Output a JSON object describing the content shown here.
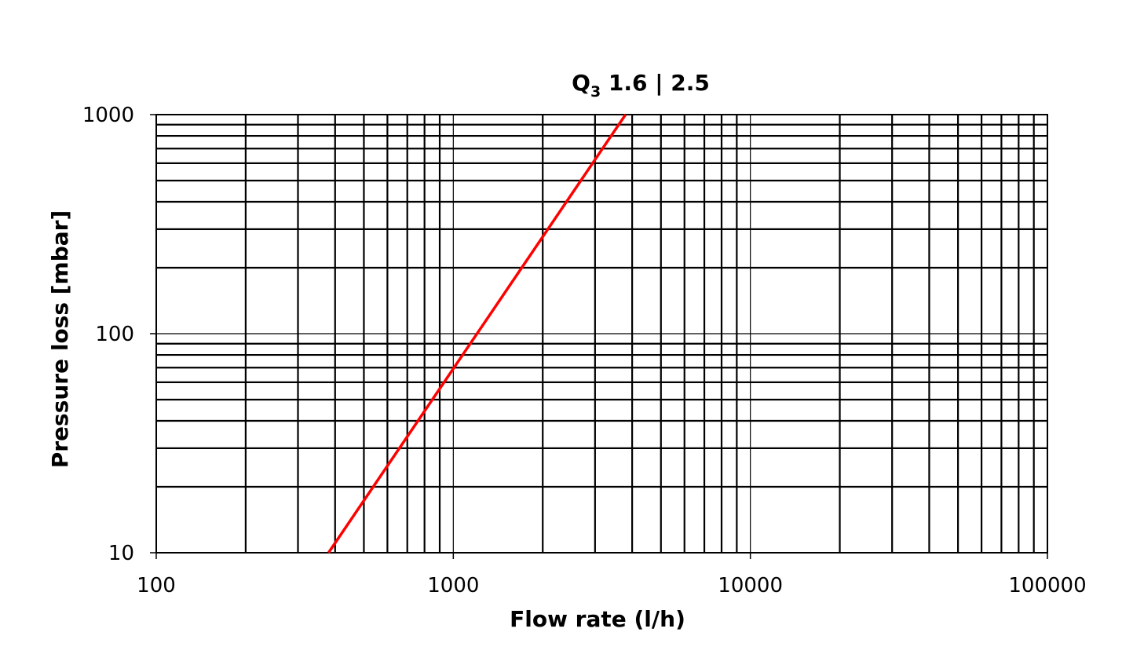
{
  "chart_data": {
    "type": "line",
    "title": {
      "main": "Q",
      "subscript": "3",
      "rest": " 1.6 | 2.5"
    },
    "xlabel": "Flow rate (l/h)",
    "ylabel": "Pressure loss [mbar]",
    "x_scale": "log",
    "y_scale": "log",
    "xlim": [
      100,
      100000
    ],
    "ylim": [
      10,
      1000
    ],
    "x_ticks": [
      "100",
      "1000",
      "10000",
      "100000"
    ],
    "y_ticks": [
      "10",
      "100",
      "1000"
    ],
    "grid": true,
    "legend": "none",
    "series": [
      {
        "color": "#ff0000",
        "x": [
          380,
          3800
        ],
        "y": [
          10,
          1000
        ]
      }
    ]
  }
}
